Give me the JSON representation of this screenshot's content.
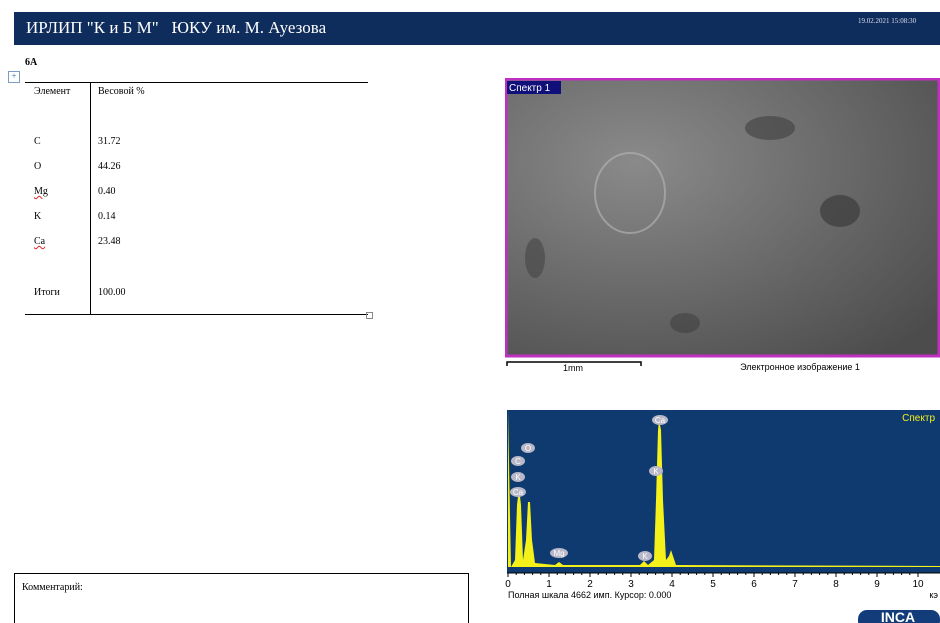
{
  "header": {
    "title": "ИРЛИП \"К и Б М\"   ЮКУ им. М. Ауезова",
    "timestamp": "19.02.2021 15:08:30"
  },
  "sample": "6А",
  "table": {
    "header": [
      "Элемент",
      "Весовой %"
    ],
    "rows": [
      [
        "C",
        "31.72"
      ],
      [
        "O",
        "44.26"
      ],
      [
        "Mg",
        "0.40"
      ],
      [
        "K",
        "0.14"
      ],
      [
        "Ca",
        "23.48"
      ]
    ],
    "total": [
      "Итоги",
      "100.00"
    ]
  },
  "image": {
    "label": "Спектр 1",
    "scale": "1mm",
    "caption": "Электронное изображение 1"
  },
  "spectrum": {
    "title": "Спектр",
    "peak_labels": [
      "O",
      "C",
      "K",
      "Ca",
      "Mg",
      "K",
      "Ca",
      "K"
    ],
    "xticks": [
      0,
      1,
      2,
      3,
      4,
      5,
      6,
      7,
      8,
      9,
      10
    ],
    "unit": "кэ",
    "footer": "Полная шкала 4662 имп. Курсор: 0.000"
  },
  "comment": "Комментарий:",
  "logo": "INCA"
}
